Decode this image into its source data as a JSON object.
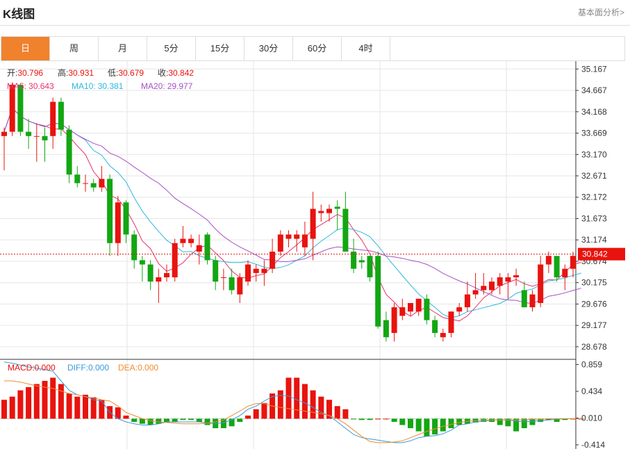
{
  "header": {
    "title": "K线图",
    "more_link": "基本面分析>"
  },
  "tabs": [
    {
      "label": "日",
      "active": true
    },
    {
      "label": "周",
      "active": false
    },
    {
      "label": "月",
      "active": false
    },
    {
      "label": "5分",
      "active": false
    },
    {
      "label": "15分",
      "active": false
    },
    {
      "label": "30分",
      "active": false
    },
    {
      "label": "60分",
      "active": false
    },
    {
      "label": "4时",
      "active": false
    }
  ],
  "info": {
    "open_label": "开:",
    "open": "30.796",
    "high_label": "高:",
    "high": "30.931",
    "low_label": "低:",
    "low": "30.679",
    "close_label": "收:",
    "close": "30.842",
    "ma5_label": "MA5:",
    "ma5": "30.643",
    "ma10_label": "MA10:",
    "ma10": "30.381",
    "ma20_label": "MA20:",
    "ma20": "29.977",
    "macd_label": "MACD:",
    "macd": "0.000",
    "diff_label": "DIFF:",
    "diff": "0.000",
    "dea_label": "DEA:",
    "dea": "0.000"
  },
  "colors": {
    "up": "#e8130e",
    "down": "#13a613",
    "ma5": "#e8336a",
    "ma10": "#2bb8de",
    "ma20": "#a64fc3",
    "price_line": "#e8130e",
    "dea": "#f08b2d",
    "diff": "#3a9ad9",
    "grid": "#e6e6e6"
  },
  "current_price_label": "30.842",
  "chart_data": {
    "type": "candlestick",
    "ylim": [
      28.4,
      35.35
    ],
    "y_ticks": [
      "35.167",
      "34.667",
      "34.168",
      "33.669",
      "33.170",
      "32.671",
      "32.172",
      "31.673",
      "31.174",
      "30.674",
      "30.175",
      "29.676",
      "29.177",
      "28.678"
    ],
    "ohlc": [
      [
        33.6,
        33.8,
        32.8,
        33.7
      ],
      [
        33.7,
        34.85,
        33.6,
        34.8
      ],
      [
        34.8,
        34.8,
        33.6,
        33.7
      ],
      [
        33.7,
        34.0,
        33.3,
        33.6
      ],
      [
        33.6,
        33.9,
        33.0,
        33.6
      ],
      [
        33.6,
        33.8,
        33.0,
        33.5
      ],
      [
        33.6,
        34.5,
        33.3,
        34.4
      ],
      [
        34.4,
        34.5,
        33.6,
        33.75
      ],
      [
        33.75,
        33.85,
        32.5,
        32.7
      ],
      [
        32.7,
        32.9,
        32.4,
        32.5
      ],
      [
        32.5,
        32.7,
        32.3,
        32.5
      ],
      [
        32.5,
        32.6,
        32.3,
        32.4
      ],
      [
        32.4,
        32.9,
        32.3,
        32.6
      ],
      [
        32.6,
        32.7,
        30.8,
        31.1
      ],
      [
        31.1,
        32.2,
        30.8,
        32.05
      ],
      [
        32.05,
        32.1,
        31.1,
        31.3
      ],
      [
        31.3,
        31.4,
        30.5,
        30.7
      ],
      [
        30.7,
        30.8,
        30.2,
        30.6
      ],
      [
        30.6,
        30.7,
        30.0,
        30.2
      ],
      [
        30.2,
        30.5,
        29.7,
        30.3
      ],
      [
        30.3,
        30.6,
        30.2,
        30.4
      ],
      [
        30.3,
        31.2,
        30.2,
        31.1
      ],
      [
        31.1,
        31.5,
        31.0,
        31.2
      ],
      [
        31.1,
        31.3,
        31.0,
        31.2
      ],
      [
        30.9,
        31.3,
        30.6,
        31.05
      ],
      [
        31.3,
        31.35,
        30.6,
        30.7
      ],
      [
        30.7,
        30.8,
        30.0,
        30.2
      ],
      [
        30.3,
        30.5,
        30.0,
        30.3
      ],
      [
        30.3,
        30.5,
        29.9,
        30.0
      ],
      [
        29.9,
        30.4,
        29.7,
        30.3
      ],
      [
        30.2,
        30.7,
        30.1,
        30.6
      ],
      [
        30.4,
        30.6,
        30.2,
        30.5
      ],
      [
        30.4,
        30.7,
        30.1,
        30.5
      ],
      [
        30.5,
        31.2,
        30.4,
        30.9
      ],
      [
        30.9,
        31.4,
        30.8,
        31.3
      ],
      [
        31.2,
        31.4,
        31.0,
        31.3
      ],
      [
        31.2,
        31.4,
        30.9,
        31.3
      ],
      [
        31.0,
        31.6,
        30.8,
        31.3
      ],
      [
        31.2,
        32.3,
        30.7,
        31.9
      ],
      [
        31.8,
        32.0,
        31.6,
        31.85
      ],
      [
        31.8,
        32.0,
        31.6,
        31.9
      ],
      [
        31.95,
        32.1,
        31.4,
        31.9
      ],
      [
        31.9,
        32.3,
        30.9,
        30.9
      ],
      [
        30.9,
        31.2,
        30.4,
        30.5
      ],
      [
        30.7,
        30.8,
        30.5,
        30.65
      ],
      [
        30.8,
        30.8,
        30.2,
        30.3
      ],
      [
        30.8,
        30.9,
        29.1,
        29.15
      ],
      [
        29.3,
        29.5,
        28.8,
        28.9
      ],
      [
        29.0,
        29.7,
        28.8,
        29.6
      ],
      [
        29.4,
        29.8,
        29.3,
        29.6
      ],
      [
        29.5,
        29.7,
        29.4,
        29.7
      ],
      [
        29.5,
        29.8,
        29.4,
        29.8
      ],
      [
        29.8,
        29.9,
        29.2,
        29.3
      ],
      [
        29.3,
        29.4,
        28.9,
        29.0
      ],
      [
        28.9,
        29.1,
        28.8,
        29.0
      ],
      [
        29.0,
        29.5,
        28.9,
        29.5
      ],
      [
        29.5,
        29.7,
        29.4,
        29.6
      ],
      [
        29.6,
        30.2,
        29.5,
        29.9
      ],
      [
        29.9,
        30.4,
        29.8,
        30.0
      ],
      [
        30.0,
        30.4,
        29.9,
        30.1
      ],
      [
        30.0,
        30.3,
        29.9,
        30.2
      ],
      [
        30.1,
        30.4,
        29.9,
        30.3
      ],
      [
        30.2,
        30.4,
        29.8,
        30.3
      ],
      [
        30.3,
        30.5,
        30.1,
        30.35
      ],
      [
        30.0,
        30.2,
        29.6,
        29.6
      ],
      [
        29.6,
        30.0,
        29.5,
        29.9
      ],
      [
        29.7,
        30.8,
        29.6,
        30.6
      ],
      [
        30.6,
        30.9,
        30.4,
        30.8
      ],
      [
        30.8,
        30.8,
        30.2,
        30.3
      ],
      [
        30.3,
        30.6,
        30.0,
        30.5
      ],
      [
        30.5,
        30.9,
        30.3,
        30.8
      ],
      [
        30.796,
        30.931,
        30.679,
        30.842
      ]
    ],
    "macd_ylim": [
      -0.48,
      0.93
    ],
    "macd_ticks": [
      "0.859",
      "0.434",
      "0.010",
      "-0.414"
    ],
    "macd_hist": [
      0.3,
      0.35,
      0.45,
      0.5,
      0.55,
      0.6,
      0.65,
      0.55,
      0.4,
      0.35,
      0.38,
      0.34,
      0.3,
      0.2,
      0.18,
      0.05,
      -0.05,
      -0.08,
      -0.1,
      -0.08,
      -0.05,
      -0.05,
      -0.02,
      -0.02,
      -0.05,
      -0.1,
      -0.15,
      -0.15,
      -0.12,
      -0.05,
      0.05,
      0.15,
      0.25,
      0.4,
      0.45,
      0.65,
      0.65,
      0.55,
      0.45,
      0.35,
      0.3,
      0.2,
      0.15,
      -0.01,
      -0.02,
      -0.02,
      0.0,
      0.0,
      -0.05,
      -0.1,
      -0.15,
      -0.2,
      -0.28,
      -0.25,
      -0.2,
      -0.15,
      -0.1,
      -0.08,
      -0.06,
      -0.05,
      -0.05,
      -0.1,
      -0.12,
      -0.2,
      -0.15,
      -0.1,
      -0.05,
      -0.02,
      -0.05,
      -0.02,
      0.0,
      0.0
    ],
    "diff": [
      0.9,
      0.88,
      0.85,
      0.82,
      0.8,
      0.78,
      0.75,
      0.6,
      0.45,
      0.38,
      0.35,
      0.3,
      0.28,
      0.1,
      0.0,
      -0.05,
      -0.08,
      -0.1,
      -0.1,
      -0.08,
      -0.05,
      -0.05,
      -0.05,
      -0.05,
      -0.05,
      -0.07,
      -0.08,
      -0.06,
      -0.02,
      0.05,
      0.15,
      0.2,
      0.28,
      0.35,
      0.37,
      0.36,
      0.3,
      0.25,
      0.18,
      0.1,
      0.05,
      -0.05,
      -0.15,
      -0.25,
      -0.3,
      -0.32,
      -0.34,
      -0.36,
      -0.38,
      -0.38,
      -0.35,
      -0.3,
      -0.28,
      -0.27,
      -0.24,
      -0.18,
      -0.1,
      -0.08,
      -0.05,
      -0.04,
      -0.02,
      -0.02,
      -0.02,
      -0.04,
      -0.05,
      -0.04,
      -0.03,
      -0.02,
      -0.01,
      0.0,
      0.0,
      0.0
    ],
    "dea": [
      0.6,
      0.6,
      0.58,
      0.55,
      0.52,
      0.5,
      0.48,
      0.44,
      0.4,
      0.38,
      0.35,
      0.33,
      0.3,
      0.28,
      0.2,
      0.1,
      0.05,
      0.0,
      -0.03,
      -0.05,
      -0.06,
      -0.07,
      -0.08,
      -0.08,
      -0.08,
      -0.07,
      -0.05,
      -0.02,
      0.05,
      0.12,
      0.2,
      0.24,
      0.24,
      0.2,
      0.18,
      0.16,
      0.14,
      0.12,
      0.1,
      0.08,
      0.05,
      0.0,
      -0.08,
      -0.18,
      -0.28,
      -0.36,
      -0.38,
      -0.38,
      -0.37,
      -0.35,
      -0.3,
      -0.25,
      -0.2,
      -0.16,
      -0.12,
      -0.09,
      -0.06,
      -0.04,
      -0.03,
      -0.02,
      -0.02,
      -0.02,
      -0.02,
      -0.02,
      -0.02,
      -0.01,
      -0.01,
      0.0,
      0.0,
      0.0,
      0.0,
      0.0
    ]
  }
}
